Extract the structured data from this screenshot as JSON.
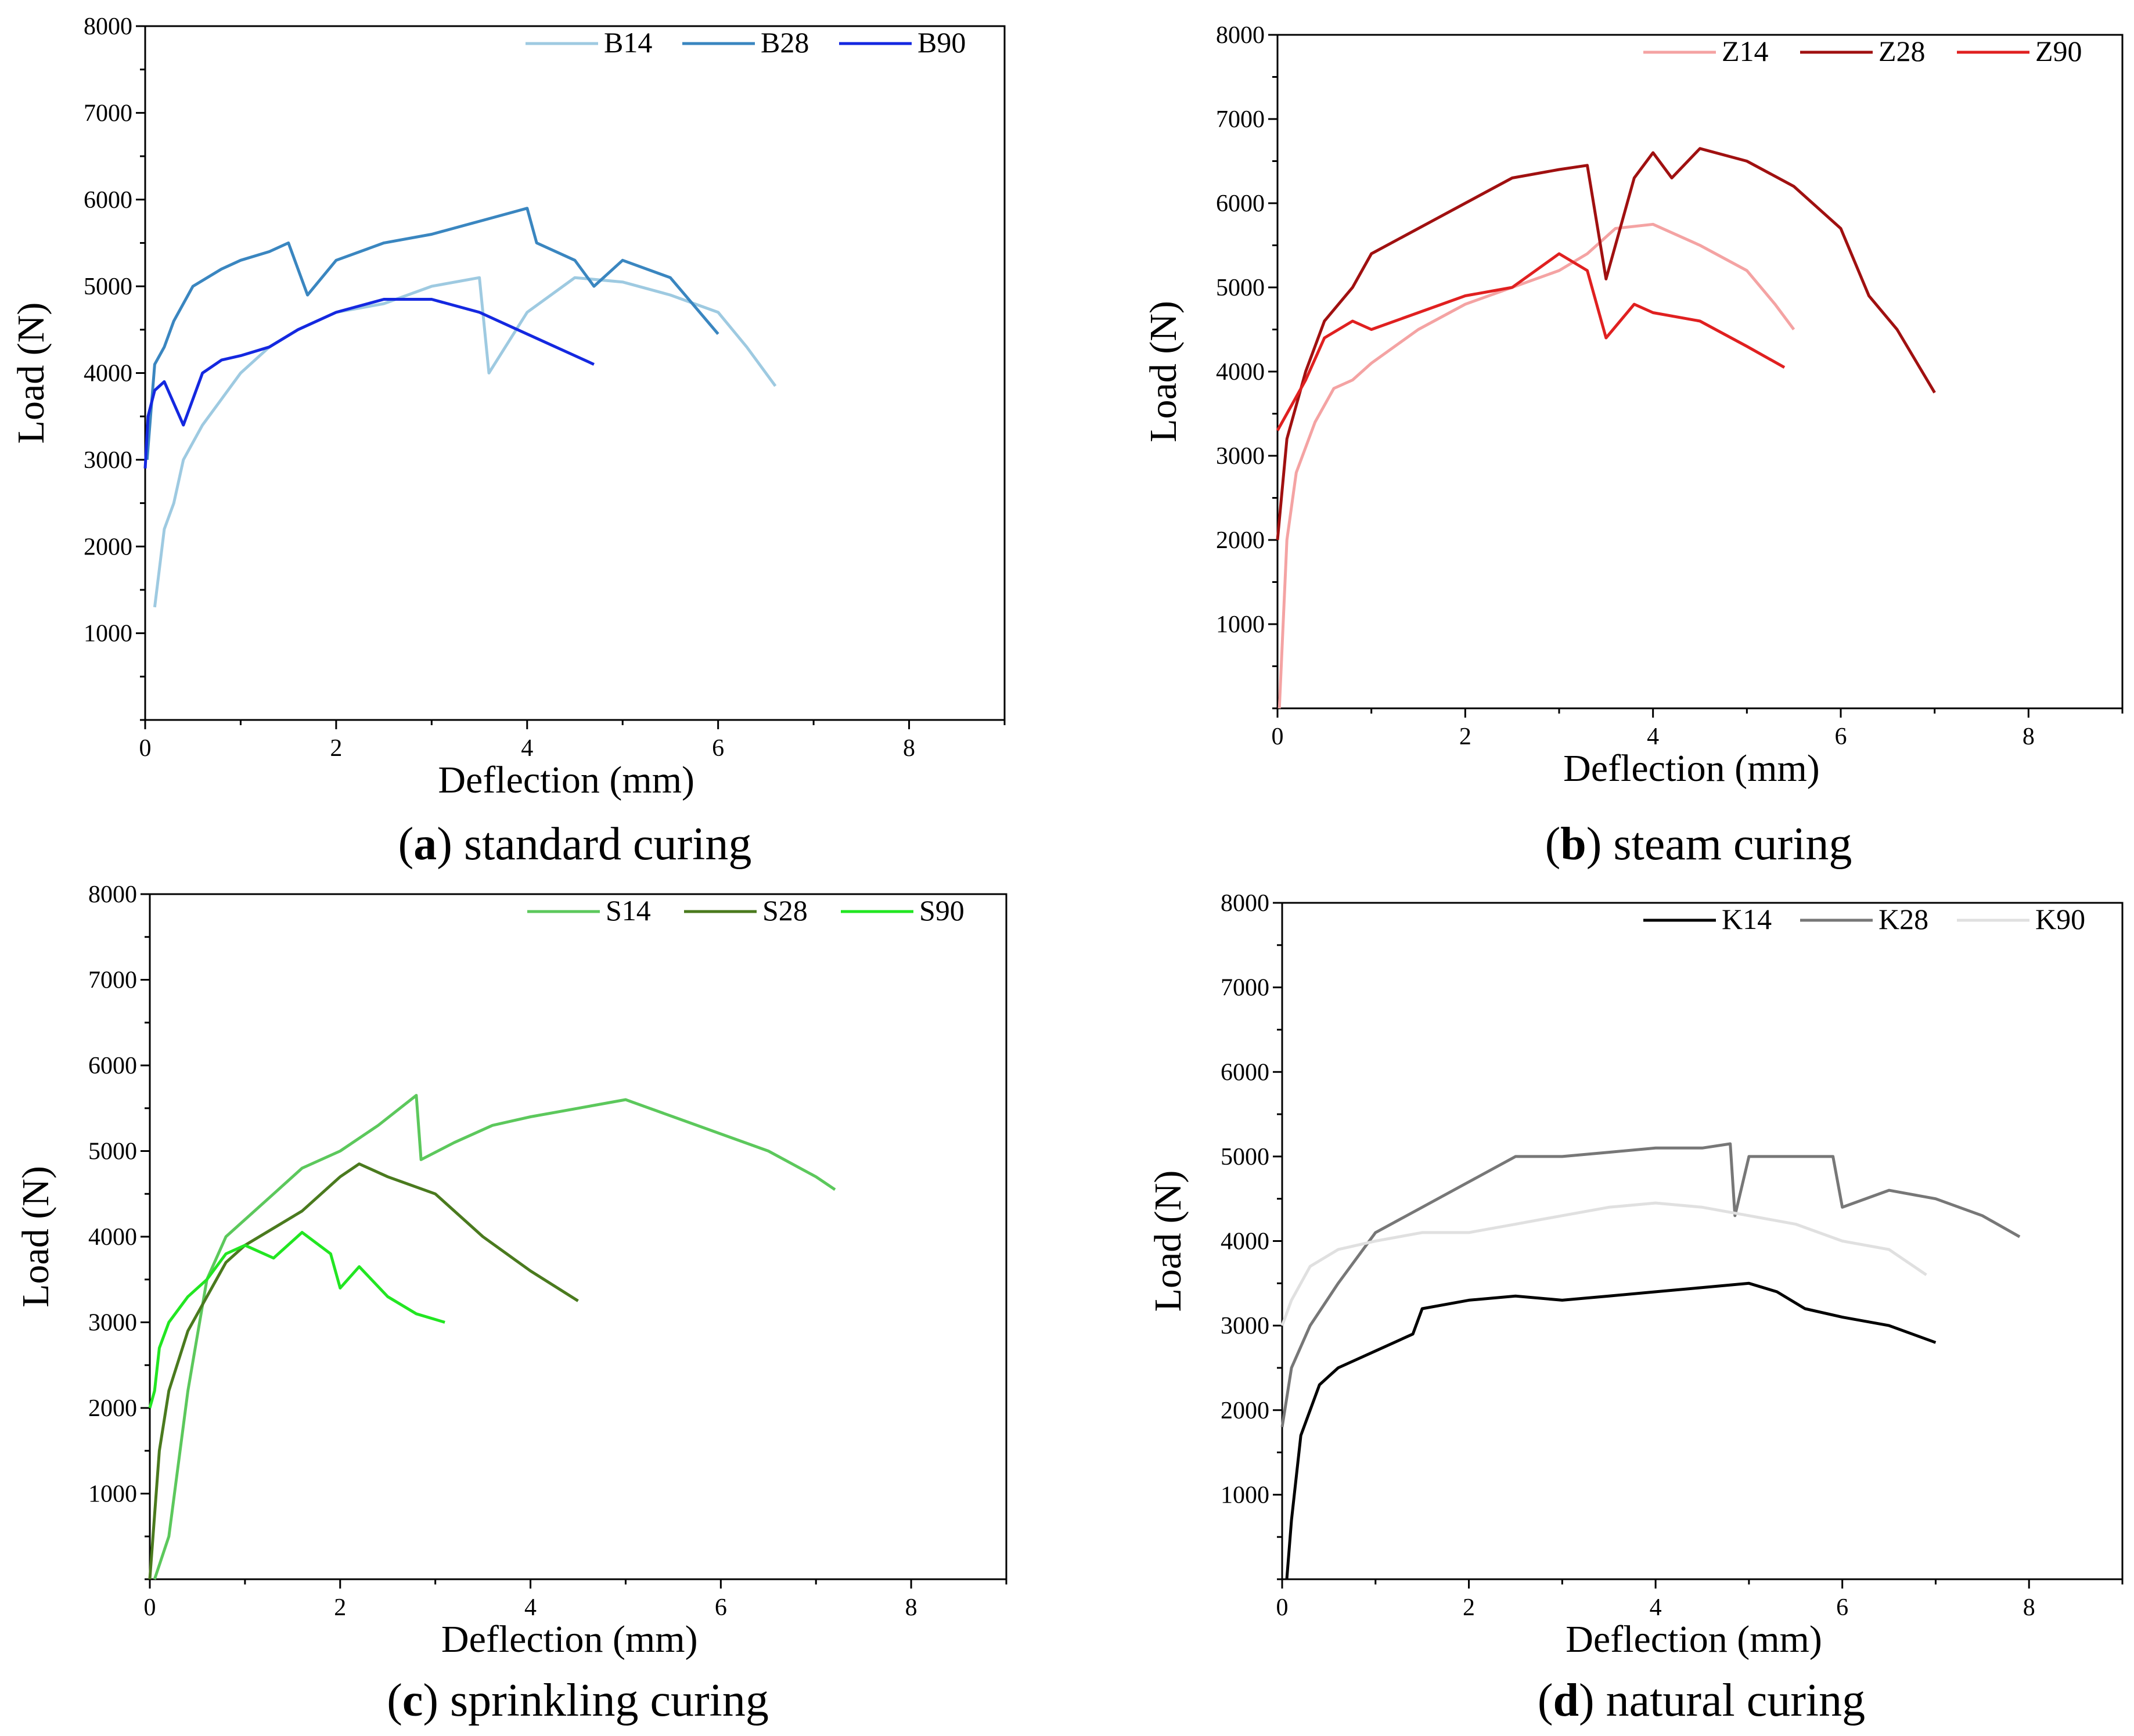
{
  "chart_data": [
    {
      "type": "line",
      "caption_letter": "a",
      "caption_text": "standard curing",
      "xlabel": "Deflection (mm)",
      "ylabel": "Load (N)",
      "xlim": [
        0,
        9
      ],
      "ylim": [
        0,
        8000
      ],
      "xticks": [
        0,
        2,
        4,
        6,
        8
      ],
      "yticks": [
        1000,
        2000,
        3000,
        4000,
        5000,
        6000,
        7000,
        8000
      ],
      "legend_position": "top-right",
      "series": [
        {
          "name": "B14",
          "color": "#9ecae1",
          "x": [
            0.1,
            0.2,
            0.3,
            0.4,
            0.6,
            0.8,
            1.0,
            1.3,
            1.6,
            2.0,
            2.5,
            3.0,
            3.5,
            3.6,
            4.0,
            4.5,
            5.0,
            5.5,
            6.0,
            6.3,
            6.6
          ],
          "y": [
            1300,
            2200,
            2500,
            3000,
            3400,
            3700,
            4000,
            4300,
            4500,
            4700,
            4800,
            5000,
            5100,
            4000,
            4700,
            5100,
            5050,
            4900,
            4700,
            4300,
            3850
          ]
        },
        {
          "name": "B28",
          "color": "#3a86c0",
          "x": [
            0.02,
            0.1,
            0.2,
            0.3,
            0.5,
            0.8,
            1.0,
            1.3,
            1.5,
            1.7,
            2.0,
            2.5,
            3.0,
            3.5,
            4.0,
            4.1,
            4.5,
            4.7,
            5.0,
            5.5,
            6.0
          ],
          "y": [
            3000,
            4100,
            4300,
            4600,
            5000,
            5200,
            5300,
            5400,
            5500,
            4900,
            5300,
            5500,
            5600,
            5750,
            5900,
            5500,
            5300,
            5000,
            5300,
            5100,
            4450
          ]
        },
        {
          "name": "B90",
          "color": "#1428e0",
          "x": [
            0.0,
            0.03,
            0.1,
            0.2,
            0.4,
            0.6,
            0.8,
            1.0,
            1.3,
            1.6,
            2.0,
            2.5,
            3.0,
            3.5,
            4.0,
            4.5,
            4.7
          ],
          "y": [
            2900,
            3500,
            3800,
            3900,
            3400,
            4000,
            4150,
            4200,
            4300,
            4500,
            4700,
            4850,
            4850,
            4700,
            4450,
            4200,
            4100
          ]
        }
      ]
    },
    {
      "type": "line",
      "caption_letter": "b",
      "caption_text": "steam curing",
      "xlabel": "Deflection (mm)",
      "ylabel": "Load (N)",
      "xlim": [
        0,
        9
      ],
      "ylim": [
        0,
        8000
      ],
      "xticks": [
        0,
        2,
        4,
        6,
        8
      ],
      "yticks": [
        1000,
        2000,
        3000,
        4000,
        5000,
        6000,
        7000,
        8000
      ],
      "legend_position": "top-right",
      "series": [
        {
          "name": "Z14",
          "color": "#f4a3a3",
          "x": [
            0.02,
            0.1,
            0.2,
            0.4,
            0.6,
            0.8,
            1.0,
            1.5,
            2.0,
            2.5,
            3.0,
            3.3,
            3.6,
            4.0,
            4.5,
            5.0,
            5.3,
            5.5
          ],
          "y": [
            0,
            2000,
            2800,
            3400,
            3800,
            3900,
            4100,
            4500,
            4800,
            5000,
            5200,
            5400,
            5700,
            5750,
            5500,
            5200,
            4800,
            4500
          ]
        },
        {
          "name": "Z28",
          "color": "#a01010",
          "x": [
            0.0,
            0.1,
            0.3,
            0.5,
            0.8,
            1.0,
            1.5,
            2.0,
            2.5,
            3.0,
            3.3,
            3.5,
            3.8,
            4.0,
            4.2,
            4.5,
            5.0,
            5.5,
            6.0,
            6.3,
            6.6,
            7.0
          ],
          "y": [
            2000,
            3200,
            4000,
            4600,
            5000,
            5400,
            5700,
            6000,
            6300,
            6400,
            6450,
            5100,
            6300,
            6600,
            6300,
            6650,
            6500,
            6200,
            5700,
            4900,
            4500,
            3750
          ]
        },
        {
          "name": "Z90",
          "color": "#e02020",
          "x": [
            0.0,
            0.1,
            0.3,
            0.5,
            0.8,
            1.0,
            1.5,
            2.0,
            2.5,
            3.0,
            3.3,
            3.5,
            3.8,
            4.0,
            4.5,
            5.0,
            5.4
          ],
          "y": [
            3300,
            3500,
            3900,
            4400,
            4600,
            4500,
            4700,
            4900,
            5000,
            5400,
            5200,
            4400,
            4800,
            4700,
            4600,
            4300,
            4050
          ]
        }
      ]
    },
    {
      "type": "line",
      "caption_letter": "c",
      "caption_text": "sprinkling curing",
      "xlabel": "Deflection (mm)",
      "ylabel": "Load (N)",
      "xlim": [
        0,
        9
      ],
      "ylim": [
        0,
        8000
      ],
      "xticks": [
        0,
        2,
        4,
        6,
        8
      ],
      "yticks": [
        1000,
        2000,
        3000,
        4000,
        5000,
        6000,
        7000,
        8000
      ],
      "legend_position": "top-right",
      "series": [
        {
          "name": "S14",
          "color": "#5cc85c",
          "x": [
            0.05,
            0.2,
            0.4,
            0.6,
            0.8,
            1.0,
            1.3,
            1.6,
            2.0,
            2.4,
            2.8,
            2.85,
            3.2,
            3.6,
            4.0,
            4.5,
            5.0,
            5.5,
            6.0,
            6.5,
            7.0,
            7.2
          ],
          "y": [
            0,
            500,
            2200,
            3500,
            4000,
            4200,
            4500,
            4800,
            5000,
            5300,
            5650,
            4900,
            5100,
            5300,
            5400,
            5500,
            5600,
            5400,
            5200,
            5000,
            4700,
            4550
          ]
        },
        {
          "name": "S28",
          "color": "#4a7a1e",
          "x": [
            0.0,
            0.1,
            0.2,
            0.4,
            0.6,
            0.8,
            1.0,
            1.3,
            1.6,
            2.0,
            2.2,
            2.5,
            3.0,
            3.5,
            4.0,
            4.5
          ],
          "y": [
            0,
            1500,
            2200,
            2900,
            3300,
            3700,
            3900,
            4100,
            4300,
            4700,
            4850,
            4700,
            4500,
            4000,
            3600,
            3250
          ]
        },
        {
          "name": "S90",
          "color": "#22e622",
          "x": [
            0.0,
            0.05,
            0.1,
            0.2,
            0.4,
            0.6,
            0.8,
            1.0,
            1.3,
            1.6,
            1.9,
            2.0,
            2.2,
            2.5,
            2.8,
            3.1
          ],
          "y": [
            2000,
            2200,
            2700,
            3000,
            3300,
            3500,
            3800,
            3900,
            3750,
            4050,
            3800,
            3400,
            3650,
            3300,
            3100,
            3000
          ]
        }
      ]
    },
    {
      "type": "line",
      "caption_letter": "d",
      "caption_text": "natural curing",
      "xlabel": "Deflection (mm)",
      "ylabel": "Load (N)",
      "xlim": [
        0,
        9
      ],
      "ylim": [
        0,
        8000
      ],
      "xticks": [
        0,
        2,
        4,
        6,
        8
      ],
      "yticks": [
        1000,
        2000,
        3000,
        4000,
        5000,
        6000,
        7000,
        8000
      ],
      "legend_position": "top-right",
      "series": [
        {
          "name": "K14",
          "color": "#000000",
          "x": [
            0.05,
            0.1,
            0.2,
            0.4,
            0.6,
            0.8,
            1.0,
            1.4,
            1.5,
            2.0,
            2.5,
            3.0,
            3.5,
            4.0,
            4.5,
            5.0,
            5.3,
            5.6,
            6.0,
            6.5,
            7.0
          ],
          "y": [
            0,
            700,
            1700,
            2300,
            2500,
            2600,
            2700,
            2900,
            3200,
            3300,
            3350,
            3300,
            3350,
            3400,
            3450,
            3500,
            3400,
            3200,
            3100,
            3000,
            2800
          ]
        },
        {
          "name": "K28",
          "color": "#777777",
          "x": [
            0.0,
            0.1,
            0.3,
            0.6,
            1.0,
            1.5,
            2.0,
            2.5,
            3.0,
            3.5,
            4.0,
            4.5,
            4.8,
            4.85,
            5.0,
            5.5,
            5.9,
            6.0,
            6.5,
            7.0,
            7.5,
            7.9
          ],
          "y": [
            1800,
            2500,
            3000,
            3500,
            4100,
            4400,
            4700,
            5000,
            5000,
            5050,
            5100,
            5100,
            5150,
            4300,
            5000,
            5000,
            5000,
            4400,
            4600,
            4500,
            4300,
            4050
          ]
        },
        {
          "name": "K90",
          "color": "#e0e0e0",
          "x": [
            0.0,
            0.1,
            0.3,
            0.6,
            1.0,
            1.5,
            2.0,
            2.5,
            3.0,
            3.5,
            4.0,
            4.5,
            5.0,
            5.5,
            6.0,
            6.5,
            6.9
          ],
          "y": [
            3000,
            3300,
            3700,
            3900,
            4000,
            4100,
            4100,
            4200,
            4300,
            4400,
            4450,
            4400,
            4300,
            4200,
            4000,
            3900,
            3600
          ]
        }
      ]
    }
  ]
}
